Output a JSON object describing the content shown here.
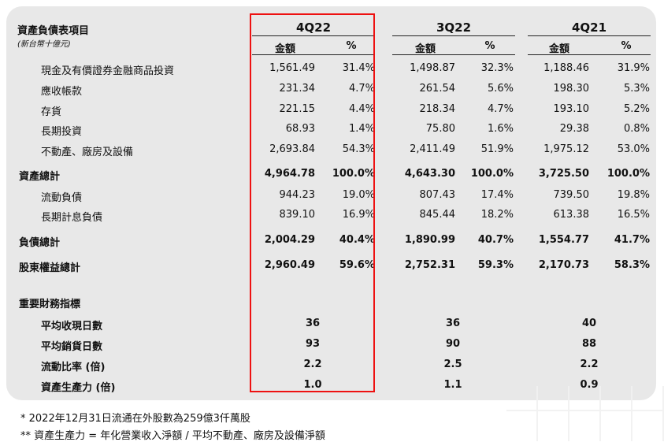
{
  "table": {
    "title": "資產負債表項目",
    "unit_note": "(新台幣十億元)",
    "periods": [
      "4Q22",
      "3Q22",
      "4Q21"
    ],
    "col_amount": "金額",
    "col_pct": "%",
    "rows": [
      {
        "label": "現金及有價證券金融商品投資",
        "bold": false,
        "v": [
          "1,561.49",
          "31.4%",
          "1,498.87",
          "32.3%",
          "1,188.46",
          "31.9%"
        ]
      },
      {
        "label": "應收帳款",
        "bold": false,
        "v": [
          "231.34",
          "4.7%",
          "261.54",
          "5.6%",
          "198.30",
          "5.3%"
        ]
      },
      {
        "label": "存貨",
        "bold": false,
        "v": [
          "221.15",
          "4.4%",
          "218.34",
          "4.7%",
          "193.10",
          "5.2%"
        ]
      },
      {
        "label": "長期投資",
        "bold": false,
        "v": [
          "68.93",
          "1.4%",
          "75.80",
          "1.6%",
          "29.38",
          "0.8%"
        ]
      },
      {
        "label": "不動產、廠房及設備",
        "bold": false,
        "v": [
          "2,693.84",
          "54.3%",
          "2,411.49",
          "51.9%",
          "1,975.12",
          "53.0%"
        ]
      },
      {
        "label": "資產總計",
        "bold": true,
        "v": [
          "4,964.78",
          "100.0%",
          "4,643.30",
          "100.0%",
          "3,725.50",
          "100.0%"
        ]
      },
      {
        "label": "流動負債",
        "bold": false,
        "v": [
          "944.23",
          "19.0%",
          "807.43",
          "17.4%",
          "739.50",
          "19.8%"
        ]
      },
      {
        "label": "長期計息負債",
        "bold": false,
        "v": [
          "839.10",
          "16.9%",
          "845.44",
          "18.2%",
          "613.38",
          "16.5%"
        ]
      },
      {
        "label": "負債總計",
        "bold": true,
        "v": [
          "2,004.29",
          "40.4%",
          "1,890.99",
          "40.7%",
          "1,554.77",
          "41.7%"
        ]
      },
      {
        "label": "股東權益總計",
        "bold": true,
        "v": [
          "2,960.49",
          "59.6%",
          "2,752.31",
          "59.3%",
          "2,170.73",
          "58.3%"
        ]
      }
    ]
  },
  "ratios": {
    "title": "重要財務指標",
    "rows": [
      {
        "label": "平均收現日數",
        "v": [
          "36",
          "36",
          "40"
        ]
      },
      {
        "label": "平均銷貨日數",
        "v": [
          "93",
          "90",
          "88"
        ]
      },
      {
        "label": "流動比率 (倍)",
        "v": [
          "2.2",
          "2.5",
          "2.2"
        ]
      },
      {
        "label": "資產生產力 (倍)",
        "v": [
          "1.0",
          "1.1",
          "0.9"
        ]
      }
    ]
  },
  "footnotes": [
    "*   2022年12月31日流通在外股數為259億3仟萬股",
    "**  資產生產力 = 年化營業收入淨額 / 平均不動產、廠房及設備淨額"
  ]
}
